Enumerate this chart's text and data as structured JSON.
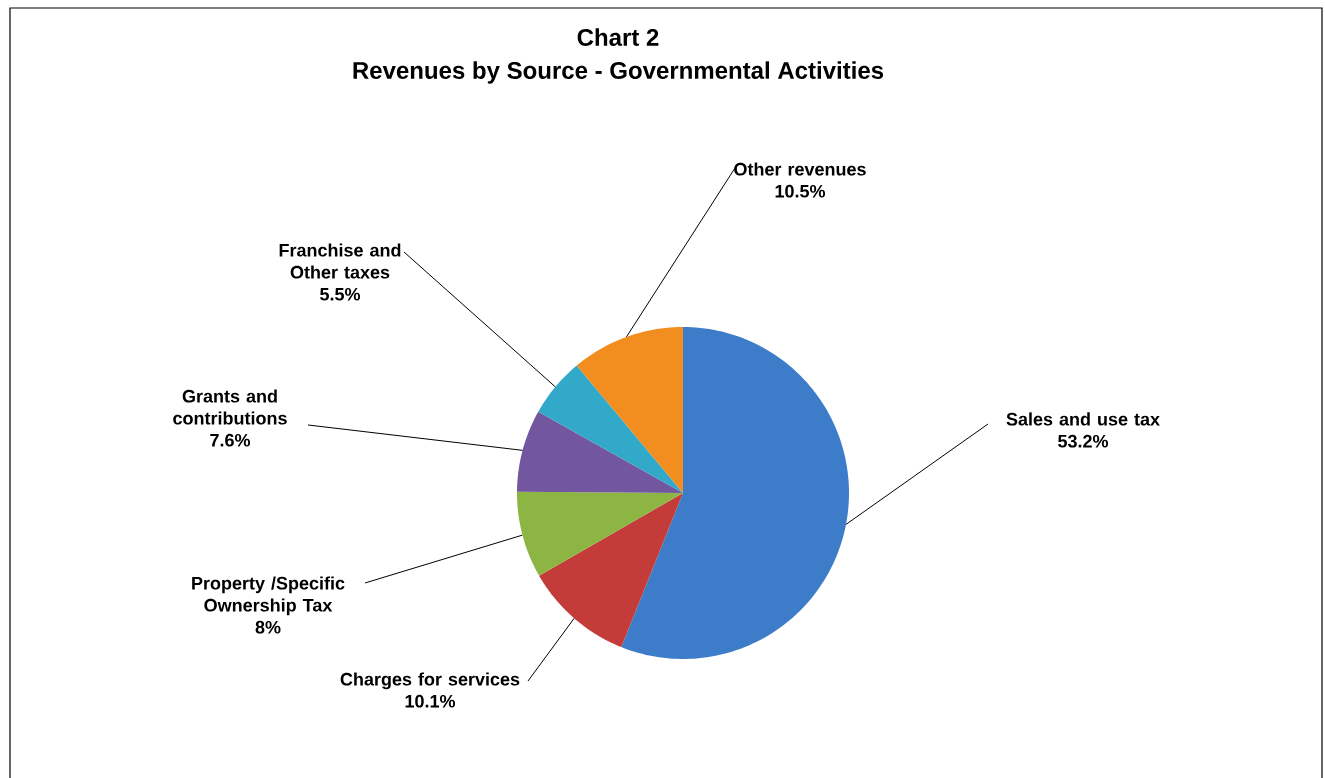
{
  "chart_data": {
    "type": "pie",
    "title": "Chart 2",
    "subtitle": "Revenues by Source - Governmental Activities",
    "categories": [
      "Sales and use tax",
      "Charges for services",
      "Property /Specific Ownership Tax",
      "Grants and contributions",
      "Franchise and Other taxes",
      "Other revenues"
    ],
    "values": [
      53.2,
      10.1,
      8,
      7.6,
      5.5,
      10.5
    ],
    "value_labels": [
      "53.2%",
      "10.1%",
      "8%",
      "7.6%",
      "5.5%",
      "10.5%"
    ],
    "colors": [
      "#3d7cc9",
      "#c43c39",
      "#8db543",
      "#7256a0",
      "#33a9c9",
      "#f28e1f"
    ]
  }
}
